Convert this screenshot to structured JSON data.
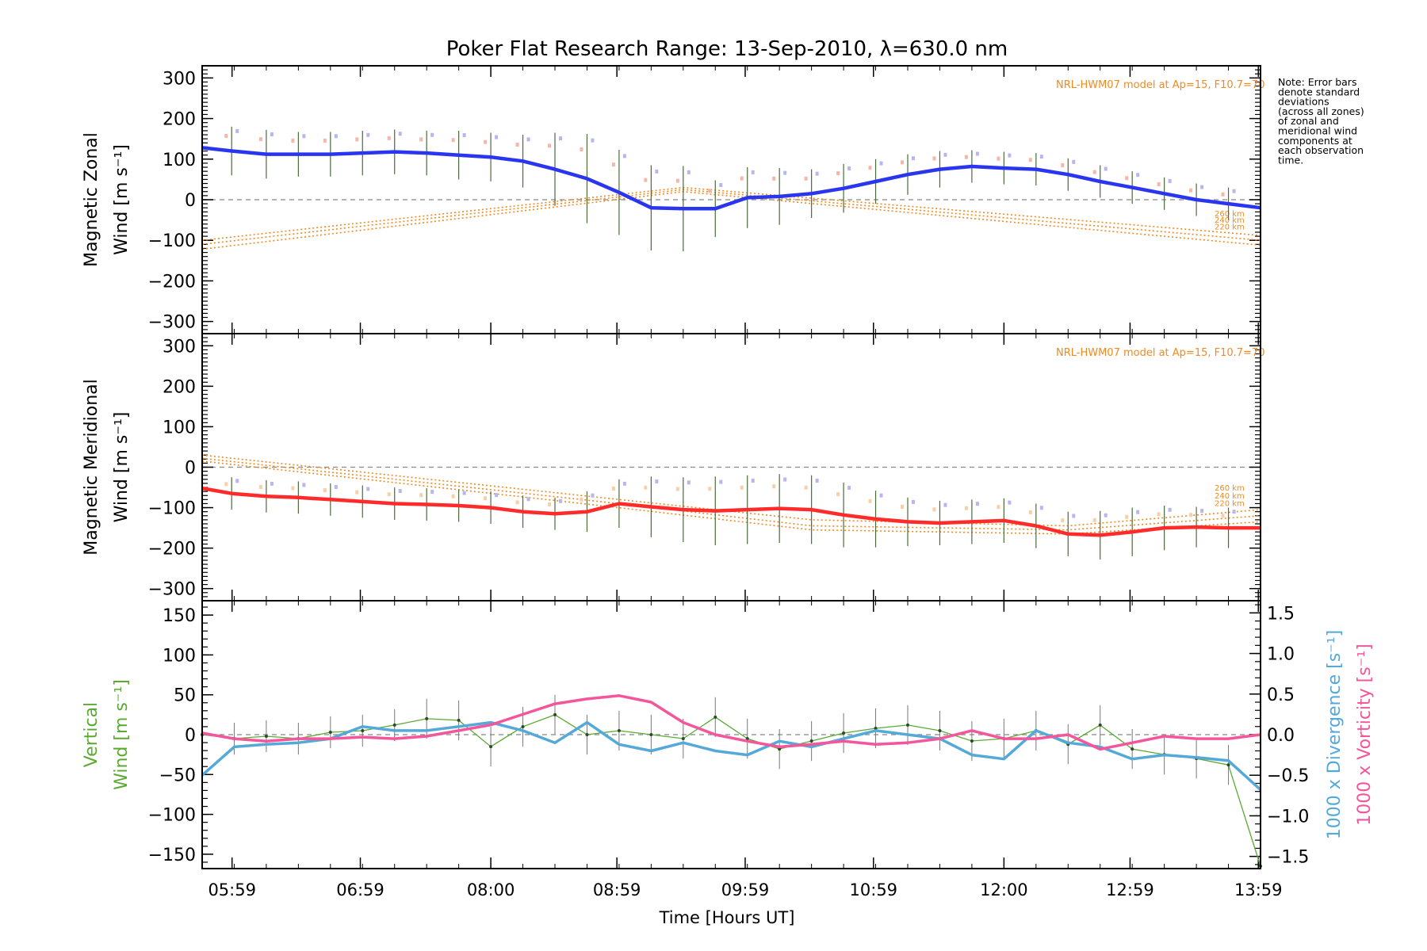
{
  "title": "Poker Flat Research Range: 13-Sep-2010, λ=630.0 nm",
  "note": [
    "Note: Error bars",
    "denote standard",
    "deviations",
    "(across all zones)",
    "of zonal and",
    "meridional wind",
    "components at",
    "each observation",
    "time."
  ],
  "model_label": "NRL-HWM07 model at Ap=15, F10.7=70",
  "model_heights": [
    "260 km",
    "240 km",
    "220 km"
  ],
  "x_axis": {
    "label": "Time [Hours UT]",
    "range_hours": [
      5.75,
      14.0
    ],
    "ticks": [
      {
        "h": 5.983,
        "label": "05:59"
      },
      {
        "h": 6.983,
        "label": "06:59"
      },
      {
        "h": 8.0,
        "label": "08:00"
      },
      {
        "h": 8.983,
        "label": "08:59"
      },
      {
        "h": 9.983,
        "label": "09:59"
      },
      {
        "h": 10.983,
        "label": "10:59"
      },
      {
        "h": 12.0,
        "label": "12:00"
      },
      {
        "h": 12.983,
        "label": "12:59"
      },
      {
        "h": 13.983,
        "label": "13:59"
      }
    ]
  },
  "colors": {
    "zonal": "#2a35f0",
    "meridional": "#ff2a2a",
    "vertical": "#5aaa32",
    "divergence": "#54a9d8",
    "vorticity": "#f3569a",
    "model": "#f08a1e",
    "errbar": "#555555"
  },
  "chart_data": [
    {
      "type": "line",
      "panel": "zonal",
      "ylabel": [
        "Magnetic Zonal",
        "Wind [m s⁻¹]"
      ],
      "ylim": [
        -330,
        330
      ],
      "yticks": [
        300,
        200,
        100,
        0,
        -100,
        -200,
        -300
      ],
      "x": [
        5.75,
        5.98,
        6.25,
        6.5,
        6.75,
        7.0,
        7.25,
        7.5,
        7.75,
        8.0,
        8.25,
        8.5,
        8.75,
        9.0,
        9.25,
        9.5,
        9.75,
        10.0,
        10.25,
        10.5,
        10.75,
        11.0,
        11.25,
        11.5,
        11.75,
        12.0,
        12.25,
        12.5,
        12.75,
        13.0,
        13.25,
        13.5,
        13.75,
        14.0
      ],
      "series": [
        {
          "name": "Magnetic Zonal Wind",
          "values": [
            128,
            120,
            112,
            112,
            112,
            115,
            118,
            115,
            110,
            105,
            95,
            75,
            52,
            18,
            -20,
            -22,
            -22,
            5,
            8,
            15,
            28,
            45,
            62,
            75,
            82,
            78,
            75,
            62,
            45,
            30,
            15,
            0,
            -10,
            -20
          ]
        }
      ],
      "error": [
        60,
        60,
        60,
        55,
        55,
        55,
        55,
        55,
        60,
        60,
        65,
        90,
        110,
        105,
        105,
        105,
        70,
        75,
        70,
        60,
        60,
        55,
        50,
        45,
        40,
        40,
        40,
        40,
        40,
        40,
        40,
        40,
        40,
        40
      ],
      "model": {
        "x": [
          5.75,
          9.5,
          14.0
        ],
        "series": [
          {
            "name": "260 km",
            "values": [
              -100,
              30,
              -88
            ]
          },
          {
            "name": "240 km",
            "values": [
              -110,
              25,
              -100
            ]
          },
          {
            "name": "220 km",
            "values": [
              -122,
              20,
              -112
            ]
          }
        ]
      }
    },
    {
      "type": "line",
      "panel": "meridional",
      "ylabel": [
        "Magnetic Meridional",
        "Wind [m s⁻¹]"
      ],
      "ylim": [
        -330,
        330
      ],
      "yticks": [
        300,
        200,
        100,
        0,
        -100,
        -200,
        -300
      ],
      "x": [
        5.75,
        5.98,
        6.25,
        6.5,
        6.75,
        7.0,
        7.25,
        7.5,
        7.75,
        8.0,
        8.25,
        8.5,
        8.75,
        9.0,
        9.25,
        9.5,
        9.75,
        10.0,
        10.25,
        10.5,
        10.75,
        11.0,
        11.25,
        11.5,
        11.75,
        12.0,
        12.25,
        12.5,
        12.75,
        13.0,
        13.25,
        13.5,
        13.75,
        14.0
      ],
      "series": [
        {
          "name": "Magnetic Meridional Wind",
          "values": [
            -52,
            -65,
            -72,
            -75,
            -80,
            -85,
            -90,
            -92,
            -95,
            -100,
            -110,
            -115,
            -110,
            -90,
            -98,
            -105,
            -108,
            -105,
            -102,
            -105,
            -118,
            -128,
            -135,
            -138,
            -135,
            -132,
            -145,
            -165,
            -168,
            -160,
            -150,
            -148,
            -150,
            -150
          ]
        }
      ],
      "error": [
        30,
        40,
        40,
        40,
        40,
        40,
        40,
        40,
        40,
        40,
        40,
        40,
        50,
        60,
        75,
        80,
        85,
        85,
        85,
        85,
        80,
        70,
        60,
        55,
        55,
        55,
        55,
        55,
        60,
        60,
        55,
        50,
        50,
        50
      ],
      "model": {
        "x": [
          5.75,
          9.0,
          10.5,
          12.5,
          14.0
        ],
        "series": [
          {
            "name": "260 km",
            "values": [
              30,
              -80,
              -130,
              -145,
              -105
            ]
          },
          {
            "name": "240 km",
            "values": [
              22,
              -90,
              -145,
              -155,
              -120
            ]
          },
          {
            "name": "220 km",
            "values": [
              15,
              -100,
              -155,
              -165,
              -135
            ]
          }
        ]
      }
    },
    {
      "type": "line",
      "panel": "vertical",
      "ylabel": [
        "Vertical",
        "Wind [m s⁻¹]"
      ],
      "ylim": [
        -168,
        168
      ],
      "yticks": [
        150,
        100,
        50,
        0,
        -50,
        -100,
        -150
      ],
      "y2label": [
        "1000 x Divergence [s⁻¹]",
        "1000 x Vorticity [s⁻¹]"
      ],
      "y2lim": [
        -1.65,
        1.65
      ],
      "y2ticks": [
        1.5,
        1.0,
        0.5,
        0.0,
        -0.5,
        -1.0,
        -1.5
      ],
      "y2ticklabels": [
        "1.5",
        "1.0",
        "0.5",
        "0.0",
        "-0.5",
        "-1.0",
        "-1.5"
      ],
      "vertical": {
        "x": [
          5.75,
          6.0,
          6.25,
          6.5,
          6.75,
          7.0,
          7.25,
          7.5,
          7.75,
          8.0,
          8.25,
          8.5,
          8.75,
          9.0,
          9.25,
          9.5,
          9.75,
          10.0,
          10.25,
          10.5,
          10.75,
          11.0,
          11.25,
          11.5,
          11.75,
          12.0,
          12.25,
          12.5,
          12.75,
          13.0,
          13.25,
          13.5,
          13.75,
          14.0
        ],
        "values": [
          0,
          -5,
          -2,
          -5,
          3,
          5,
          12,
          20,
          18,
          -15,
          10,
          25,
          0,
          5,
          0,
          -5,
          22,
          -5,
          -18,
          -8,
          2,
          8,
          12,
          5,
          -8,
          -5,
          5,
          -12,
          12,
          -18,
          -25,
          -30,
          -38,
          -165
        ],
        "error": [
          25,
          20,
          20,
          20,
          20,
          20,
          20,
          25,
          25,
          25,
          25,
          25,
          25,
          25,
          25,
          25,
          25,
          25,
          25,
          25,
          25,
          25,
          25,
          25,
          25,
          25,
          25,
          25,
          25,
          25,
          25,
          25,
          25,
          25
        ]
      },
      "divergence": {
        "x": [
          5.75,
          6.0,
          6.25,
          6.5,
          6.75,
          7.0,
          7.25,
          7.5,
          7.75,
          8.0,
          8.25,
          8.5,
          8.75,
          9.0,
          9.25,
          9.5,
          9.75,
          10.0,
          10.25,
          10.5,
          10.75,
          11.0,
          11.25,
          11.5,
          11.75,
          12.0,
          12.25,
          12.5,
          12.75,
          13.0,
          13.25,
          13.5,
          13.75,
          14.0
        ],
        "values": [
          -0.5,
          -0.15,
          -0.12,
          -0.1,
          -0.05,
          0.1,
          0.05,
          0.05,
          0.1,
          0.15,
          0.05,
          -0.1,
          0.15,
          -0.12,
          -0.2,
          -0.1,
          -0.2,
          -0.25,
          -0.08,
          -0.15,
          -0.05,
          0.05,
          0.0,
          -0.05,
          -0.25,
          -0.3,
          0.05,
          -0.1,
          -0.15,
          -0.3,
          -0.25,
          -0.28,
          -0.32,
          -0.68
        ]
      },
      "vorticity": {
        "x": [
          5.75,
          6.0,
          6.25,
          6.5,
          6.75,
          7.0,
          7.25,
          7.5,
          7.75,
          8.0,
          8.25,
          8.5,
          8.75,
          9.0,
          9.25,
          9.5,
          9.75,
          10.0,
          10.25,
          10.5,
          10.75,
          11.0,
          11.25,
          11.5,
          11.75,
          12.0,
          12.25,
          12.5,
          12.75,
          13.0,
          13.25,
          13.5,
          13.75,
          14.0
        ],
        "values": [
          0.02,
          -0.05,
          -0.08,
          -0.05,
          -0.05,
          -0.03,
          -0.05,
          -0.02,
          0.05,
          0.12,
          0.25,
          0.38,
          0.44,
          0.48,
          0.4,
          0.15,
          0.0,
          -0.08,
          -0.15,
          -0.12,
          -0.08,
          -0.12,
          -0.1,
          -0.05,
          0.05,
          -0.05,
          -0.05,
          0.0,
          -0.18,
          -0.1,
          -0.02,
          -0.05,
          -0.05,
          0.0
        ]
      }
    }
  ]
}
